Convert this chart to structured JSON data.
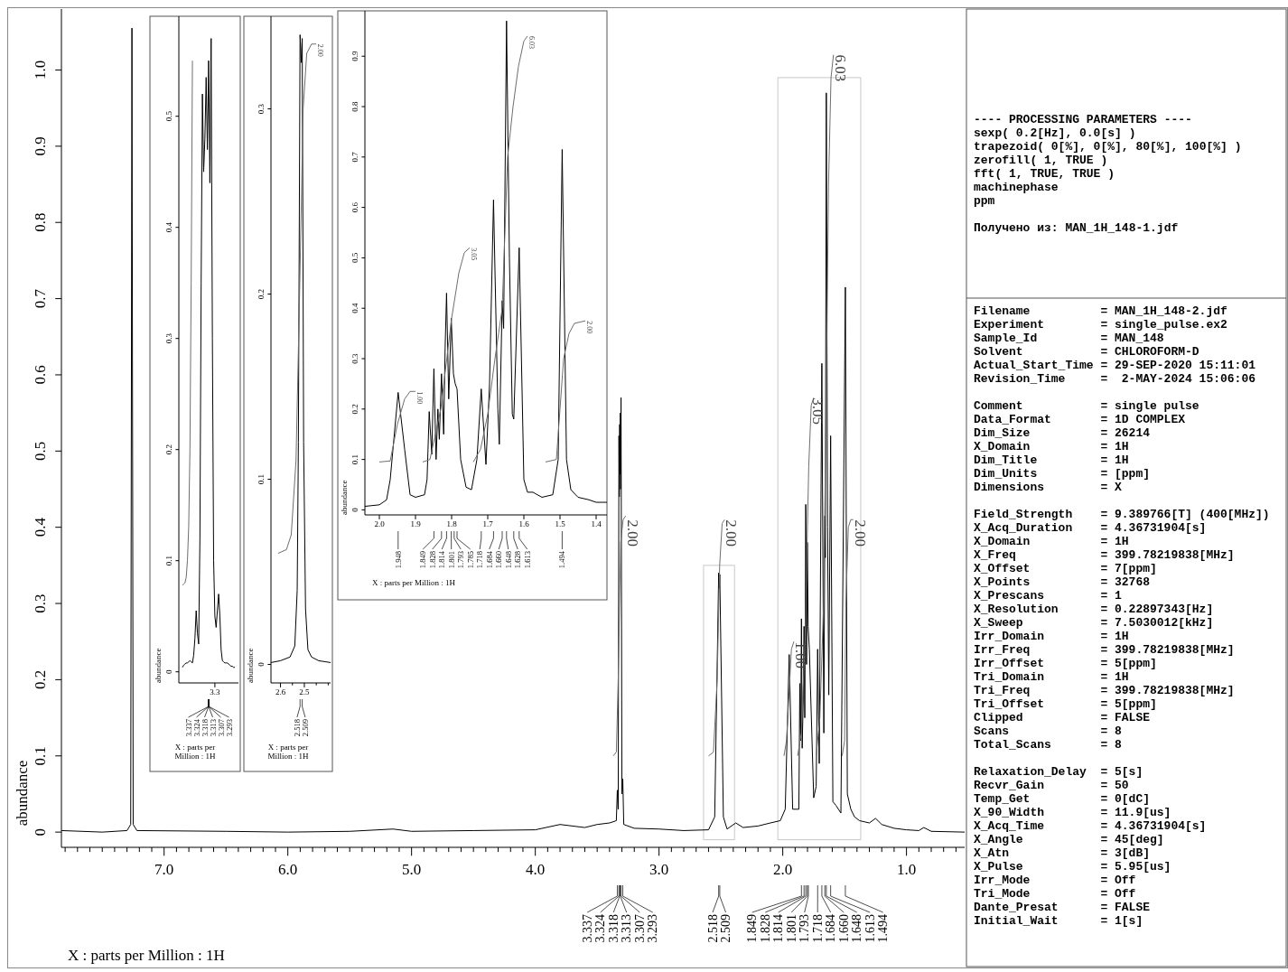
{
  "chart_data": [
    {
      "type": "line",
      "xlabel": "X : parts per Million : 1H",
      "ylabel": "abundance",
      "xlim": [
        7.83,
        0.53
      ],
      "ylim": [
        -0.02,
        1.08
      ],
      "xticks": [
        {
          "value": 7.8,
          "label": null
        },
        {
          "value": 7.7,
          "label": null
        },
        {
          "value": 7.6,
          "label": null
        },
        {
          "value": 7.5,
          "label": null
        },
        {
          "value": 7.4,
          "label": null
        },
        {
          "value": 7.3,
          "label": null
        },
        {
          "value": 7.2,
          "label": null
        },
        {
          "value": 7.1,
          "label": null
        },
        {
          "value": 7,
          "label": "7.0"
        },
        {
          "value": 6.9,
          "label": null
        },
        {
          "value": 6.8,
          "label": null
        },
        {
          "value": 6.7,
          "label": null
        },
        {
          "value": 6.6,
          "label": null
        },
        {
          "value": 6.5,
          "label": null
        },
        {
          "value": 6.4,
          "label": null
        },
        {
          "value": 6.3,
          "label": null
        },
        {
          "value": 6.2,
          "label": null
        },
        {
          "value": 6.1,
          "label": null
        },
        {
          "value": 6,
          "label": "6.0"
        },
        {
          "value": 5.9,
          "label": null
        },
        {
          "value": 5.8,
          "label": null
        },
        {
          "value": 5.7,
          "label": null
        },
        {
          "value": 5.6,
          "label": null
        },
        {
          "value": 5.5,
          "label": null
        },
        {
          "value": 5.4,
          "label": null
        },
        {
          "value": 5.3,
          "label": null
        },
        {
          "value": 5.2,
          "label": null
        },
        {
          "value": 5.1,
          "label": null
        },
        {
          "value": 5,
          "label": "5.0"
        },
        {
          "value": 4.9,
          "label": null
        },
        {
          "value": 4.8,
          "label": null
        },
        {
          "value": 4.7,
          "label": null
        },
        {
          "value": 4.6,
          "label": null
        },
        {
          "value": 4.5,
          "label": null
        },
        {
          "value": 4.4,
          "label": null
        },
        {
          "value": 4.3,
          "label": null
        },
        {
          "value": 4.2,
          "label": null
        },
        {
          "value": 4.1,
          "label": null
        },
        {
          "value": 4,
          "label": "4.0"
        },
        {
          "value": 3.9,
          "label": null
        },
        {
          "value": 3.8,
          "label": null
        },
        {
          "value": 3.7,
          "label": null
        },
        {
          "value": 3.6,
          "label": null
        },
        {
          "value": 3.5,
          "label": null
        },
        {
          "value": 3.4,
          "label": null
        },
        {
          "value": 3.3,
          "label": null
        },
        {
          "value": 3.2,
          "label": null
        },
        {
          "value": 3.1,
          "label": null
        },
        {
          "value": 3,
          "label": "3.0"
        },
        {
          "value": 2.9,
          "label": null
        },
        {
          "value": 2.8,
          "label": null
        },
        {
          "value": 2.7,
          "label": null
        },
        {
          "value": 2.6,
          "label": null
        },
        {
          "value": 2.5,
          "label": null
        },
        {
          "value": 2.4,
          "label": null
        },
        {
          "value": 2.3,
          "label": null
        },
        {
          "value": 2.2,
          "label": null
        },
        {
          "value": 2.1,
          "label": null
        },
        {
          "value": 2,
          "label": "2.0"
        },
        {
          "value": 1.9,
          "label": null
        },
        {
          "value": 1.8,
          "label": null
        },
        {
          "value": 1.7,
          "label": null
        },
        {
          "value": 1.6,
          "label": null
        },
        {
          "value": 1.5,
          "label": null
        },
        {
          "value": 1.4,
          "label": null
        },
        {
          "value": 1.3,
          "label": null
        },
        {
          "value": 1.2,
          "label": null
        },
        {
          "value": 1.1,
          "label": null
        },
        {
          "value": 1,
          "label": "1.0"
        },
        {
          "value": 0.9,
          "label": null
        },
        {
          "value": 0.8,
          "label": null
        },
        {
          "value": 0.7,
          "label": null
        },
        {
          "value": 0.6,
          "label": null
        }
      ],
      "yticks": [
        0,
        0.1,
        0.2,
        0.3,
        0.4,
        0.5,
        0.6,
        0.7,
        0.8,
        0.9,
        {
          "value": 1,
          "label": "1.0"
        }
      ],
      "series": [
        {
          "color": "#000000",
          "x": [
            7.83,
            7.5,
            7.3,
            7.27,
            7.26,
            7.25,
            7.22,
            6.5,
            6.0,
            5.5,
            5.15,
            5.0,
            4.5,
            4.0,
            3.8,
            3.6,
            3.5,
            3.4,
            3.345,
            3.337,
            3.33,
            3.324,
            3.321,
            3.318,
            3.316,
            3.313,
            3.31,
            3.307,
            3.3,
            3.293,
            3.285,
            3.2,
            3.0,
            2.8,
            2.6,
            2.55,
            2.518,
            2.513,
            2.509,
            2.48,
            2.45,
            2.38,
            2.32,
            2.2,
            2.1,
            2.02,
            1.98,
            1.948,
            1.92,
            1.87,
            1.862,
            1.855,
            1.849,
            1.843,
            1.834,
            1.828,
            1.822,
            1.814,
            1.808,
            1.801,
            1.795,
            1.785,
            1.75,
            1.73,
            1.718,
            1.705,
            1.684,
            1.668,
            1.66,
            1.656,
            1.648,
            1.638,
            1.628,
            1.613,
            1.595,
            1.57,
            1.53,
            1.494,
            1.478,
            1.45,
            1.42,
            1.38,
            1.3,
            1.25,
            1.2,
            1.1,
            1.0,
            0.9,
            0.86,
            0.8,
            0.53
          ],
          "values": [
            0.002,
            0.0,
            0.002,
            0.01,
            1.055,
            0.01,
            0.002,
            0.001,
            0.0,
            0.001,
            0.004,
            0.001,
            0.002,
            0.003,
            0.01,
            0.006,
            0.01,
            0.012,
            0.015,
            0.055,
            0.03,
            0.52,
            0.44,
            0.535,
            0.47,
            0.55,
            0.45,
            0.57,
            0.05,
            0.07,
            0.01,
            0.005,
            0.004,
            0.002,
            0.003,
            0.02,
            0.34,
            0.32,
            0.338,
            0.02,
            0.004,
            0.012,
            0.006,
            0.008,
            0.012,
            0.015,
            0.03,
            0.233,
            0.03,
            0.03,
            0.195,
            0.12,
            0.28,
            0.11,
            0.18,
            0.27,
            0.15,
            0.43,
            0.22,
            0.38,
            0.27,
            0.24,
            0.045,
            0.06,
            0.24,
            0.09,
            0.615,
            0.13,
            0.415,
            0.36,
            0.97,
            0.4,
            0.18,
            0.52,
            0.04,
            0.035,
            0.025,
            0.715,
            0.05,
            0.03,
            0.02,
            0.015,
            0.012,
            0.018,
            0.01,
            0.005,
            0.003,
            0.002,
            0.006,
            0.001,
            0.0
          ]
        },
        {
          "color": "#6e6e6e",
          "x": [
            3.37,
            3.345,
            3.33,
            3.31,
            3.29,
            3.27
          ],
          "values": [
            0.1,
            0.105,
            0.2,
            0.38,
            0.41,
            0.415
          ]
        },
        {
          "color": "#6e6e6e",
          "x": [
            2.6,
            2.56,
            2.53,
            2.51,
            2.49,
            2.47
          ],
          "values": [
            0.1,
            0.105,
            0.2,
            0.35,
            0.405,
            0.41
          ]
        },
        {
          "color": "#6e6e6e",
          "x": [
            1.99,
            1.97,
            1.95,
            1.93,
            1.91
          ],
          "values": [
            0.1,
            0.12,
            0.18,
            0.24,
            0.25
          ]
        },
        {
          "color": "#6e6e6e",
          "x": [
            1.88,
            1.85,
            1.82,
            1.79,
            1.77,
            1.75
          ],
          "values": [
            0.1,
            0.13,
            0.25,
            0.48,
            0.56,
            0.57
          ]
        },
        {
          "color": "#6e6e6e",
          "x": [
            1.73,
            1.7,
            1.67,
            1.65,
            1.63,
            1.61,
            1.59
          ],
          "values": [
            0.1,
            0.15,
            0.3,
            0.55,
            0.85,
            0.99,
            1.02
          ]
        },
        {
          "color": "#6e6e6e",
          "x": [
            1.52,
            1.5,
            1.49,
            1.47,
            1.45,
            1.43
          ],
          "values": [
            0.1,
            0.12,
            0.3,
            0.4,
            0.41,
            0.41
          ]
        }
      ],
      "annotations": [
        {
          "text": "2.00",
          "x": 3.27,
          "y": 0.41
        },
        {
          "text": "2.00",
          "x": 2.47,
          "y": 0.41
        },
        {
          "text": "1.00",
          "x": 1.91,
          "y": 0.25
        },
        {
          "text": "3.05",
          "x": 1.77,
          "y": 0.57
        },
        {
          "text": "6.03",
          "x": 1.59,
          "y": 1.02
        },
        {
          "text": "2.00",
          "x": 1.43,
          "y": 0.41
        },
        {
          "text": "3.337",
          "x": 3.337
        },
        {
          "text": "3.324",
          "x": 3.324
        },
        {
          "text": "3.318",
          "x": 3.318
        },
        {
          "text": "3.313",
          "x": 3.313
        },
        {
          "text": "3.307",
          "x": 3.307
        },
        {
          "text": "3.293",
          "x": 3.293
        },
        {
          "text": "2.518",
          "x": 2.518
        },
        {
          "text": "2.509",
          "x": 2.509
        },
        {
          "text": "1.849",
          "x": 1.849
        },
        {
          "text": "1.828",
          "x": 1.828
        },
        {
          "text": "1.814",
          "x": 1.814
        },
        {
          "text": "1.801",
          "x": 1.801
        },
        {
          "text": "1.793",
          "x": 1.793
        },
        {
          "text": "1.718",
          "x": 1.718
        },
        {
          "text": "1.684",
          "x": 1.684
        },
        {
          "text": "1.660",
          "x": 1.66
        },
        {
          "text": "1.648",
          "x": 1.648
        },
        {
          "text": "1.613",
          "x": 1.613
        },
        {
          "text": "1.494",
          "x": 1.494
        }
      ]
    },
    {
      "type": "line",
      "xlabel": "X : parts per Million : 1H",
      "ylabel": "abundance",
      "ylim": [
        -0.01,
        0.59
      ],
      "categories": [
        null,
        null,
        null,
        null,
        null,
        null,
        null,
        null,
        null,
        null,
        null,
        null,
        null,
        null,
        null,
        null,
        null,
        null,
        null,
        null,
        null,
        null,
        null,
        null,
        null,
        null,
        "3.3",
        null,
        null,
        null,
        null,
        null,
        null,
        null,
        null,
        null,
        null,
        null,
        null,
        null,
        null,
        null,
        null
      ],
      "yticks": [
        0,
        0.1,
        0.2,
        0.3,
        0.4,
        0.5
      ],
      "series": [
        {
          "color": "#000000",
          "values": [
            0.004,
            0.006,
            0.007,
            0.008,
            0.008,
            0.009,
            0.01,
            0.009,
            0.008,
            0.015,
            0.03,
            0.055,
            0.035,
            0.025,
            0.12,
            0.35,
            0.52,
            0.45,
            0.48,
            0.535,
            0.47,
            0.55,
            0.44,
            0.57,
            0.3,
            0.1,
            0.05,
            0.04,
            0.055,
            0.07,
            0.05,
            0.02,
            0.01,
            0.009,
            0.008,
            0.008,
            0.008,
            0.007,
            0.006,
            0.005,
            0.005,
            0.004,
            0.004
          ]
        },
        {
          "color": "#6e6e6e",
          "values": [
            0.078,
            0.079,
            0.08,
            0.085,
            0.1,
            0.13,
            0.2,
            0.35,
            0.55,
            null,
            null,
            null,
            null,
            null,
            null,
            null,
            null,
            null,
            null,
            null,
            null,
            null,
            null,
            null,
            null,
            null,
            null,
            null,
            null,
            null,
            null,
            null,
            null,
            null,
            null,
            null,
            null,
            null,
            null,
            null,
            null,
            null,
            null
          ]
        }
      ],
      "annotations": [
        "3.337",
        "3.324",
        "3.318",
        "3.313",
        "3.307",
        "3.293"
      ]
    },
    {
      "type": "line",
      "xlabel": "X : parts per Million : 1H",
      "ylabel": "abundance",
      "xlim": [
        2.64,
        2.39
      ],
      "ylim": [
        -0.01,
        0.35
      ],
      "xticks": [
        2.6,
        {
          "value": 2.55,
          "label": null
        },
        2.5,
        {
          "value": 2.45,
          "label": null
        },
        {
          "value": 2.4,
          "label": null
        }
      ],
      "yticks": [
        0,
        0.1,
        0.2,
        0.3
      ],
      "series": [
        {
          "color": "#000000",
          "x": [
            2.64,
            2.6,
            2.56,
            2.54,
            2.53,
            2.525,
            2.518,
            2.513,
            2.509,
            2.503,
            2.495,
            2.485,
            2.47,
            2.44,
            2.39
          ],
          "values": [
            0.001,
            0.002,
            0.004,
            0.01,
            0.04,
            0.12,
            0.34,
            0.325,
            0.338,
            0.12,
            0.03,
            0.008,
            0.004,
            0.002,
            0.001
          ]
        },
        {
          "color": "#6e6e6e",
          "x": [
            2.61,
            2.575,
            2.555,
            2.535,
            2.52,
            2.505,
            2.49,
            2.47,
            2.45
          ],
          "values": [
            0.06,
            0.062,
            0.07,
            0.11,
            0.2,
            0.3,
            0.33,
            0.335,
            0.335
          ]
        }
      ],
      "annotations": [
        {
          "text": "2.00",
          "x": 2.45,
          "y": 0.335
        },
        {
          "text": "2.518",
          "x": 2.518
        },
        {
          "text": "2.509",
          "x": 2.509
        }
      ]
    },
    {
      "type": "line",
      "xlabel": "X : parts per Million : 1H",
      "ylabel": "abundance",
      "xlim": [
        2.04,
        1.37
      ],
      "ylim": [
        -0.01,
        0.99
      ],
      "xticks": [
        {
          "value": 2,
          "label": "2.0"
        },
        1.9,
        1.8,
        1.7,
        1.6,
        1.5,
        1.4
      ],
      "yticks": [
        0,
        0.1,
        0.2,
        0.3,
        0.4,
        0.5,
        0.6,
        0.7,
        0.8,
        0.9
      ],
      "series": [
        {
          "color": "#000000",
          "x": [
            2.04,
            2.0,
            1.98,
            1.97,
            1.948,
            1.93,
            1.915,
            1.9,
            1.875,
            1.868,
            1.862,
            1.855,
            1.849,
            1.843,
            1.838,
            1.834,
            1.828,
            1.822,
            1.818,
            1.814,
            1.808,
            1.801,
            1.795,
            1.79,
            1.785,
            1.775,
            1.76,
            1.745,
            1.73,
            1.718,
            1.705,
            1.695,
            1.684,
            1.672,
            1.668,
            1.66,
            1.656,
            1.648,
            1.64,
            1.632,
            1.628,
            1.613,
            1.6,
            1.59,
            1.575,
            1.55,
            1.52,
            1.505,
            1.494,
            1.482,
            1.47,
            1.45,
            1.42,
            1.4,
            1.37
          ],
          "values": [
            0.007,
            0.01,
            0.02,
            0.06,
            0.233,
            0.12,
            0.03,
            0.025,
            0.03,
            0.06,
            0.195,
            0.11,
            0.28,
            0.1,
            0.2,
            0.14,
            0.27,
            0.15,
            0.32,
            0.43,
            0.22,
            0.38,
            0.27,
            0.25,
            0.24,
            0.1,
            0.045,
            0.04,
            0.1,
            0.24,
            0.09,
            0.25,
            0.615,
            0.2,
            0.13,
            0.415,
            0.36,
            0.97,
            0.5,
            0.19,
            0.18,
            0.52,
            0.06,
            0.035,
            0.035,
            0.025,
            0.03,
            0.1,
            0.715,
            0.1,
            0.04,
            0.025,
            0.02,
            0.015,
            0.015
          ]
        },
        {
          "color": "#6e6e6e",
          "x": [
            2.0,
            1.97,
            1.95,
            1.93,
            1.915,
            1.9
          ],
          "values": [
            0.095,
            0.097,
            0.17,
            0.22,
            0.235,
            0.235
          ]
        },
        {
          "color": "#6e6e6e",
          "x": [
            1.88,
            1.86,
            1.83,
            1.8,
            1.78,
            1.765,
            1.75
          ],
          "values": [
            0.095,
            0.1,
            0.2,
            0.38,
            0.47,
            0.51,
            0.52
          ]
        },
        {
          "color": "#6e6e6e",
          "x": [
            1.74,
            1.72,
            1.7,
            1.68,
            1.66,
            1.645,
            1.63,
            1.615,
            1.6,
            1.59
          ],
          "values": [
            0.095,
            0.12,
            0.19,
            0.3,
            0.4,
            0.7,
            0.8,
            0.88,
            0.93,
            0.94
          ]
        },
        {
          "color": "#6e6e6e",
          "x": [
            1.54,
            1.51,
            1.5,
            1.49,
            1.475,
            1.46,
            1.43
          ],
          "values": [
            0.095,
            0.1,
            0.2,
            0.3,
            0.35,
            0.37,
            0.375
          ]
        }
      ],
      "annotations": [
        {
          "text": "1.00",
          "x": 1.9,
          "y": 0.235
        },
        {
          "text": "3.05",
          "x": 1.75,
          "y": 0.52
        },
        {
          "text": "6.03",
          "x": 1.59,
          "y": 0.94
        },
        {
          "text": "2.00",
          "x": 1.43,
          "y": 0.375
        },
        {
          "text": "1.948",
          "x": 1.948
        },
        {
          "text": "1.849",
          "x": 1.849
        },
        {
          "text": "1.828",
          "x": 1.828
        },
        {
          "text": "1.814",
          "x": 1.814
        },
        {
          "text": "1.801",
          "x": 1.801
        },
        {
          "text": "1.793",
          "x": 1.793
        },
        {
          "text": "1.785",
          "x": 1.785
        },
        {
          "text": "1.718",
          "x": 1.718
        },
        {
          "text": "1.684",
          "x": 1.684
        },
        {
          "text": "1.660",
          "x": 1.66
        },
        {
          "text": "1.648",
          "x": 1.648
        },
        {
          "text": "1.628",
          "x": 1.628
        },
        {
          "text": "1.613",
          "x": 1.613
        },
        {
          "text": "1.494",
          "x": 1.494
        }
      ]
    },
    {
      "type": "other",
      "title": "---- PROCESSING PARAMETERS ----",
      "annotations": [
        "sexp( 0.2[Hz], 0.0[s] )",
        "trapezoid( 0[%], 0[%], 80[%], 100[%] )",
        "zerofill( 1, TRUE )",
        "fft( 1, TRUE, TRUE )",
        "machinephase",
        "ppm"
      ]
    },
    {
      "type": "other",
      "annotations": [
        "Получено из: MAN_1H_148-1.jdf"
      ]
    },
    {
      "type": "other",
      "annotations": [
        "Filename = MAN_1H_148-2.jdf",
        "Experiment = single_pulse.ex2",
        "Sample_Id = MAN_148",
        "Solvent = CHLOROFORM-D",
        "Actual_Start_Time = 29-SEP-2020 15:11:01",
        "Revision_Time =  2-MAY-2024 15:06:06"
      ]
    },
    {
      "type": "other",
      "annotations": [
        "Comment = single pulse",
        "Data_Format = 1D COMPLEX",
        "Dim_Size = 26214",
        "X_Domain = 1H",
        "Dim_Title = 1H",
        "Dim_Units = [ppm]",
        "Dimensions = X"
      ]
    },
    {
      "type": "other",
      "annotations": [
        "Field_Strength = 9.389766[T] (400[MHz])",
        "X_Acq_Duration = 4.36731904[s]",
        "X_Domain = 1H",
        "X_Freq = 399.78219838[MHz]",
        "X_Offset = 7[ppm]",
        "X_Points = 32768",
        "X_Prescans = 1",
        "X_Resolution = 0.22897343[Hz]",
        "X_Sweep = 7.5030012[kHz]",
        "Irr_Domain = 1H",
        "Irr_Freq = 399.78219838[MHz]",
        "Irr_Offset = 5[ppm]",
        "Tri_Domain = 1H",
        "Tri_Freq = 399.78219838[MHz]",
        "Tri_Offset = 5[ppm]",
        "Clipped = FALSE",
        "Scans = 8",
        "Total_Scans = 8"
      ]
    },
    {
      "type": "other",
      "annotations": [
        "Relaxation_Delay = 5[s]",
        "Recvr_Gain = 50",
        "Temp_Get = 0[dC]",
        "X_90_Width = 11.9[us]",
        "X_Acq_Time = 4.36731904[s]",
        "X_Angle = 45[deg]",
        "X_Atn = 3[dB]",
        "X_Pulse = 5.95[us]",
        "Irr_Mode = Off",
        "Tri_Mode = Off",
        "Dante_Presat = FALSE",
        "Initial_Wait = 1[s]"
      ]
    }
  ]
}
